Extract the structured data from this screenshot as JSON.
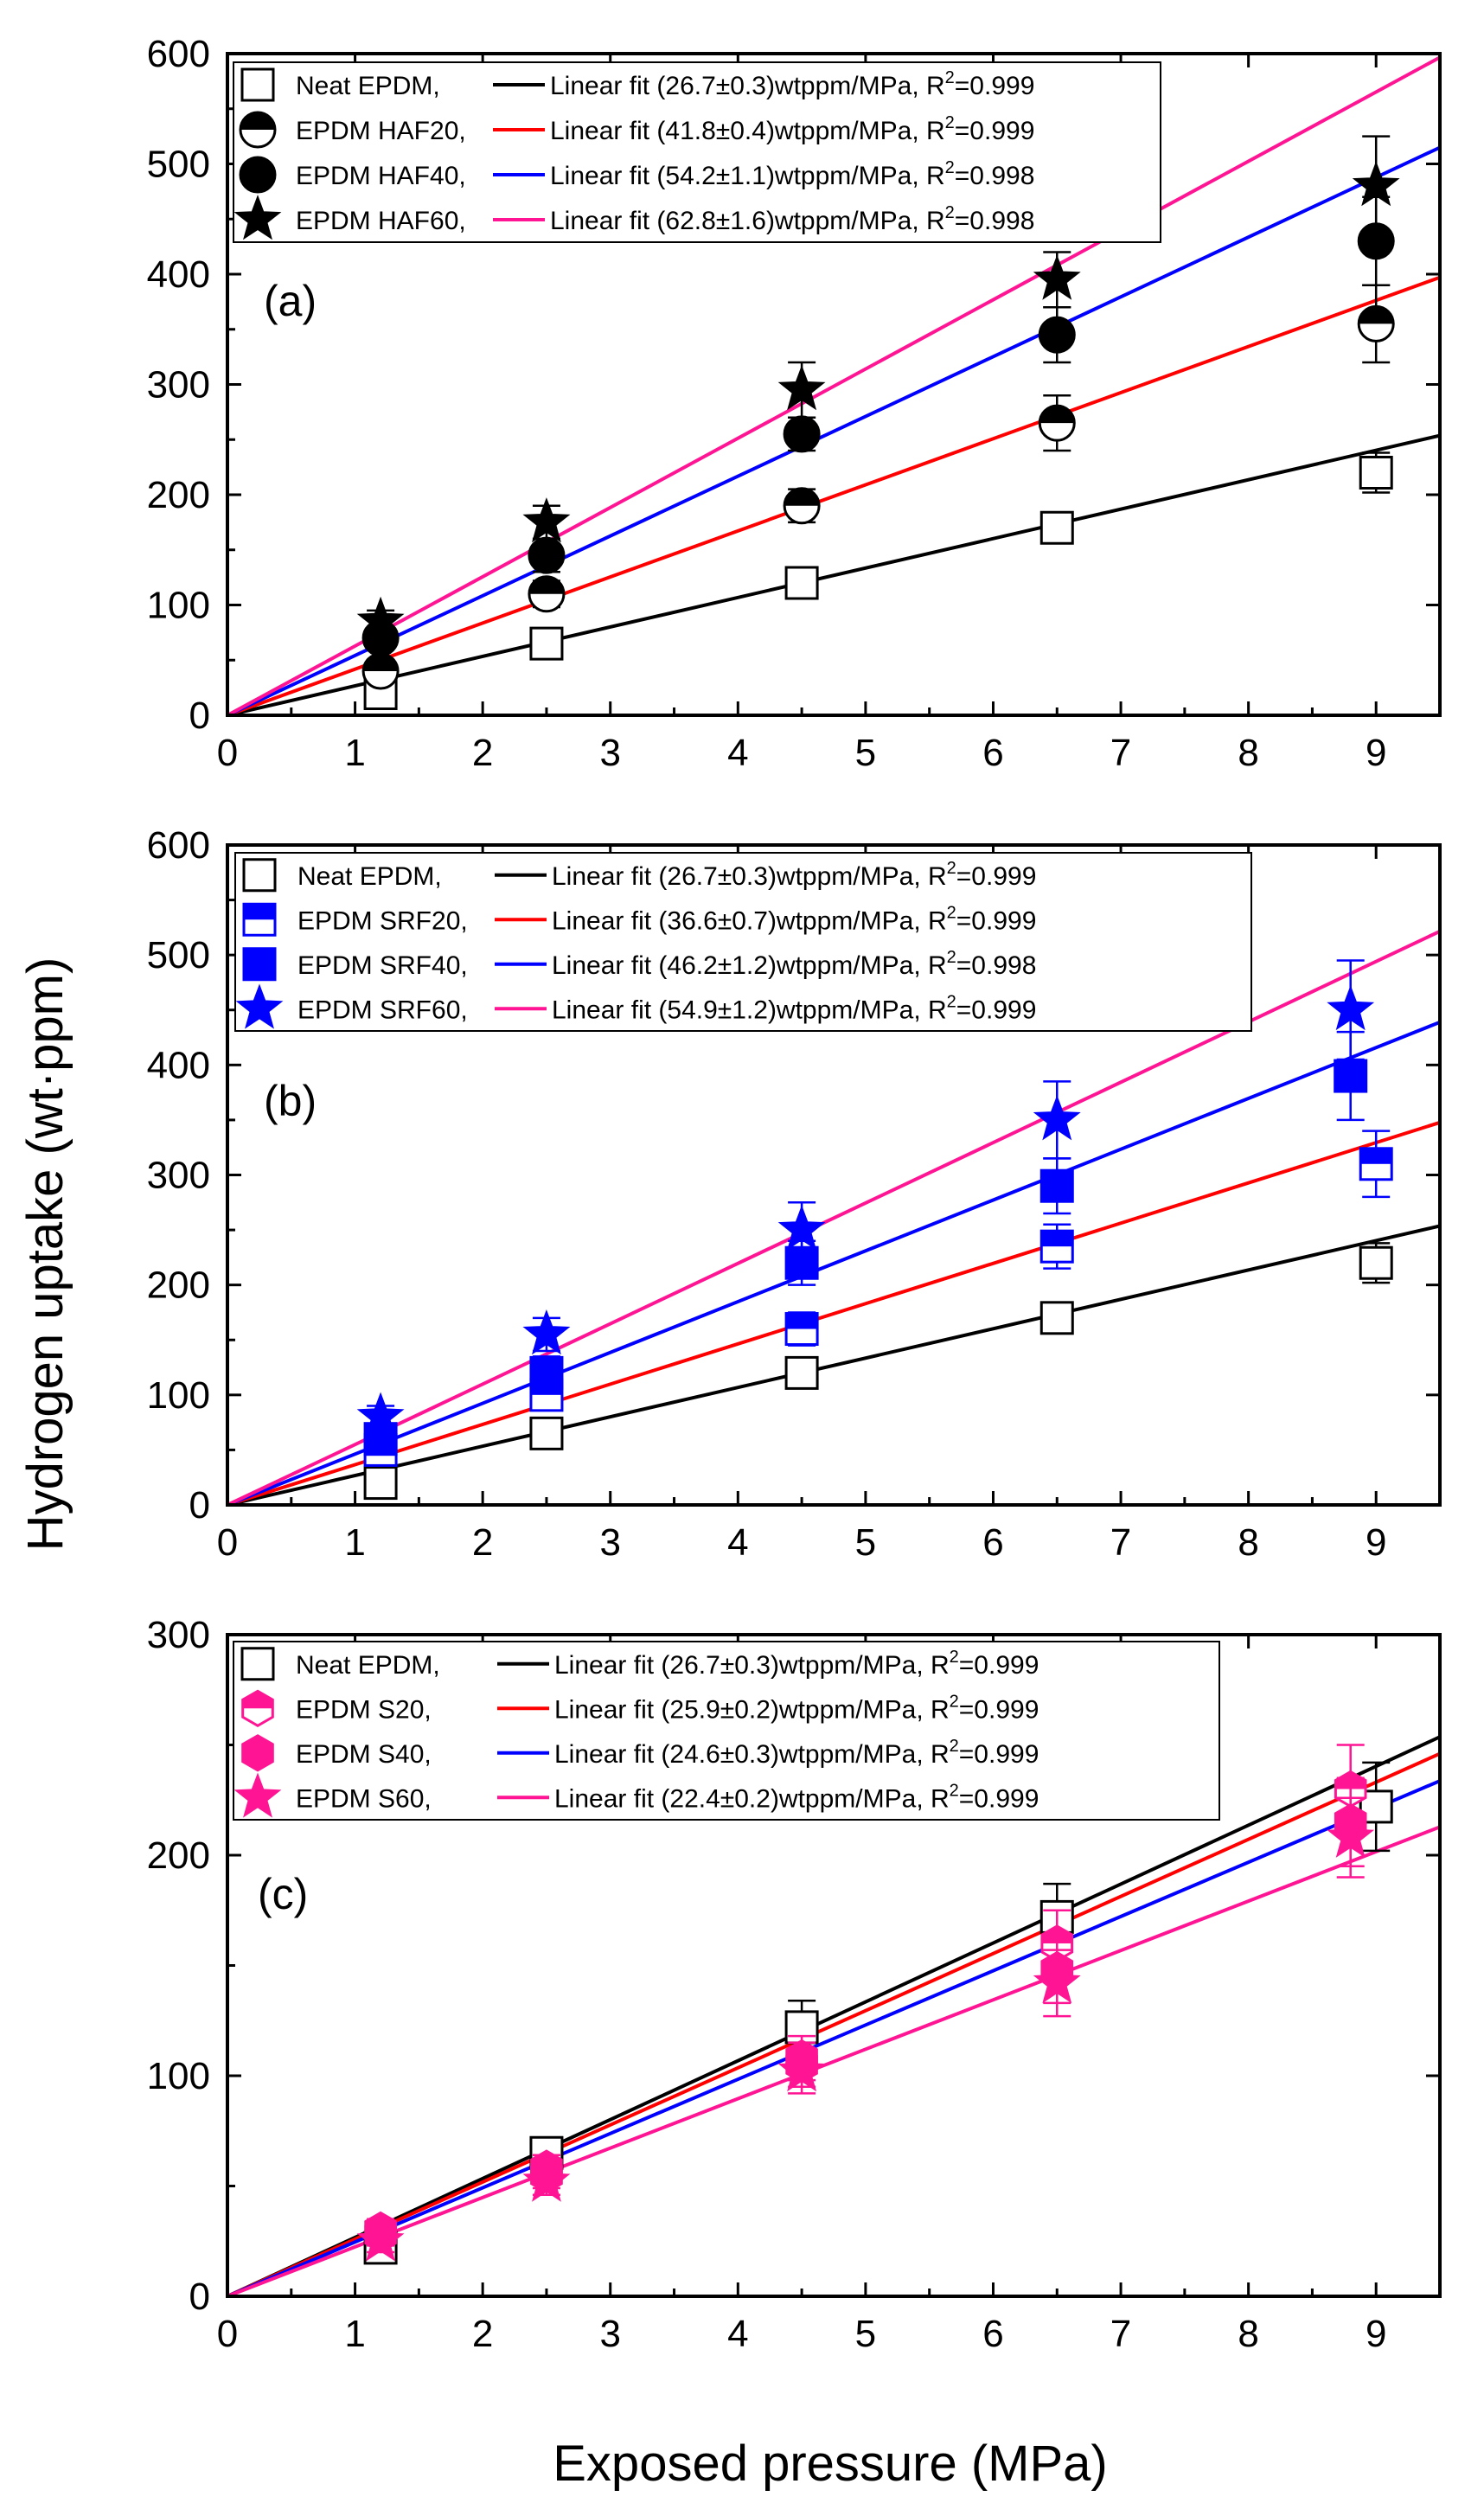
{
  "chart_data": [
    {
      "type": "scatter",
      "panel_label": "(a)",
      "xlim": [
        0,
        9.5
      ],
      "ylim": [
        0,
        600
      ],
      "xticks": [
        "0",
        "1",
        "2",
        "3",
        "4",
        "5",
        "6",
        "7",
        "8",
        "9"
      ],
      "yticks": [
        "0",
        "100",
        "200",
        "300",
        "400",
        "500",
        "600"
      ],
      "series": [
        {
          "name": "Neat EPDM,",
          "fit_label": "Linear fit (26.7±0.3)wtppm/MPa, R",
          "r2_label": "2",
          "r2_value": "=0.999",
          "slope": 26.7,
          "marker": "open-square",
          "color": "#000000",
          "fit_color": "#000000",
          "x": [
            1.2,
            2.5,
            4.5,
            6.5,
            9.0
          ],
          "y": [
            20,
            65,
            120,
            170,
            220
          ],
          "err": [
            10,
            10,
            10,
            10,
            18
          ]
        },
        {
          "name": "EPDM HAF20,",
          "fit_label": "Linear fit (41.8±0.4)wtppm/MPa, R",
          "r2_label": "2",
          "r2_value": "=0.999",
          "slope": 41.8,
          "marker": "half-circle",
          "color": "#000000",
          "fit_color": "#ff0000",
          "x": [
            1.2,
            2.5,
            4.5,
            6.5,
            9.0
          ],
          "y": [
            40,
            110,
            190,
            265,
            355
          ],
          "err": [
            10,
            12,
            15,
            25,
            35
          ]
        },
        {
          "name": "EPDM HAF40,",
          "fit_label": "Linear fit (54.2±1.1)wtppm/MPa, R",
          "r2_label": "2",
          "r2_value": "=0.998",
          "slope": 54.2,
          "marker": "filled-circle",
          "color": "#000000",
          "fit_color": "#0000ff",
          "x": [
            1.2,
            2.5,
            4.5,
            6.5,
            9.0
          ],
          "y": [
            70,
            145,
            255,
            345,
            430
          ],
          "err": [
            10,
            15,
            15,
            25,
            40
          ]
        },
        {
          "name": "EPDM HAF60,",
          "fit_label": "Linear fit (62.8±1.6)wtppm/MPa, R",
          "r2_label": "2",
          "r2_value": "=0.998",
          "slope": 62.8,
          "marker": "star",
          "color": "#000000",
          "fit_color": "#ff1493",
          "x": [
            1.2,
            2.5,
            4.5,
            6.5,
            9.0
          ],
          "y": [
            85,
            175,
            295,
            395,
            480
          ],
          "err": [
            10,
            15,
            25,
            25,
            45
          ]
        }
      ]
    },
    {
      "type": "scatter",
      "panel_label": "(b)",
      "xlim": [
        0,
        9.5
      ],
      "ylim": [
        0,
        600
      ],
      "xticks": [
        "0",
        "1",
        "2",
        "3",
        "4",
        "5",
        "6",
        "7",
        "8",
        "9"
      ],
      "yticks": [
        "0",
        "100",
        "200",
        "300",
        "400",
        "500",
        "600"
      ],
      "series": [
        {
          "name": "Neat EPDM,",
          "fit_label": "Linear fit (26.7±0.3)wtppm/MPa, R",
          "r2_label": "2",
          "r2_value": "=0.999",
          "slope": 26.7,
          "marker": "open-square",
          "color": "#000000",
          "fit_color": "#000000",
          "x": [
            1.2,
            2.5,
            4.5,
            6.5,
            9.0
          ],
          "y": [
            20,
            65,
            120,
            170,
            220
          ],
          "err": [
            10,
            10,
            10,
            10,
            18
          ]
        },
        {
          "name": "EPDM SRF20,",
          "fit_label": "Linear fit (36.6±0.7)wtppm/MPa, R",
          "r2_label": "2",
          "r2_value": "=0.999",
          "slope": 36.6,
          "marker": "half-square",
          "color": "#0000ff",
          "fit_color": "#ff0000",
          "x": [
            1.2,
            2.5,
            4.5,
            6.5,
            9.0
          ],
          "y": [
            50,
            100,
            160,
            235,
            310
          ],
          "err": [
            10,
            12,
            15,
            20,
            30
          ]
        },
        {
          "name": "EPDM SRF40,",
          "fit_label": "Linear fit (46.2±1.2)wtppm/MPa, R",
          "r2_label": "2",
          "r2_value": "=0.998",
          "slope": 46.2,
          "marker": "filled-square",
          "color": "#0000ff",
          "fit_color": "#0000ff",
          "x": [
            1.2,
            2.5,
            4.5,
            6.5,
            8.8
          ],
          "y": [
            60,
            120,
            220,
            290,
            390
          ],
          "err": [
            10,
            15,
            20,
            25,
            40
          ]
        },
        {
          "name": "EPDM SRF60,",
          "fit_label": "Linear fit (54.9±1.2)wtppm/MPa, R",
          "r2_label": "2",
          "r2_value": "=0.999",
          "slope": 54.9,
          "marker": "star",
          "color": "#0000ff",
          "fit_color": "#ff1493",
          "x": [
            1.2,
            2.5,
            4.5,
            6.5,
            8.8
          ],
          "y": [
            80,
            155,
            250,
            350,
            450
          ],
          "err": [
            10,
            15,
            25,
            35,
            45
          ]
        }
      ]
    },
    {
      "type": "scatter",
      "panel_label": "(c)",
      "xlim": [
        0,
        9.5
      ],
      "ylim": [
        0,
        300
      ],
      "xticks": [
        "0",
        "1",
        "2",
        "3",
        "4",
        "5",
        "6",
        "7",
        "8",
        "9"
      ],
      "yticks": [
        "0",
        "100",
        "200",
        "300"
      ],
      "series": [
        {
          "name": "Neat EPDM,",
          "fit_label": "Linear fit (26.7±0.3)wtppm/MPa, R",
          "r2_label": "2",
          "r2_value": "=0.999",
          "slope": 26.7,
          "marker": "open-square",
          "color": "#000000",
          "fit_color": "#000000",
          "x": [
            1.2,
            2.5,
            4.5,
            6.5,
            9.0
          ],
          "y": [
            22,
            65,
            122,
            172,
            222
          ],
          "err": [
            6,
            6,
            12,
            15,
            20
          ]
        },
        {
          "name": "EPDM S20,",
          "fit_label": "Linear fit (25.9±0.2)wtppm/MPa, R",
          "r2_label": "2",
          "r2_value": "=0.999",
          "slope": 25.9,
          "marker": "half-hexagon",
          "color": "#ff1493",
          "fit_color": "#ff0000",
          "x": [
            1.2,
            2.5,
            4.5,
            6.5,
            8.8
          ],
          "y": [
            30,
            58,
            108,
            160,
            230
          ],
          "err": [
            5,
            6,
            10,
            15,
            20
          ]
        },
        {
          "name": "EPDM S40,",
          "fit_label": "Linear fit (24.6±0.3)wtppm/MPa, R",
          "r2_label": "2",
          "r2_value": "=0.999",
          "slope": 24.6,
          "marker": "filled-hexagon",
          "color": "#ff1493",
          "fit_color": "#0000ff",
          "x": [
            1.2,
            2.5,
            4.5,
            6.5,
            8.8
          ],
          "y": [
            28,
            55,
            105,
            148,
            215
          ],
          "err": [
            5,
            6,
            10,
            15,
            20
          ]
        },
        {
          "name": "EPDM S60,",
          "fit_label": "Linear fit (22.4±0.2)wtppm/MPa, R",
          "r2_label": "2",
          "r2_value": "=0.999",
          "slope": 22.4,
          "marker": "star",
          "color": "#ff1493",
          "fit_color": "#ff1493",
          "x": [
            1.2,
            2.5,
            4.5,
            6.5,
            8.8
          ],
          "y": [
            25,
            52,
            102,
            142,
            208
          ],
          "err": [
            5,
            6,
            10,
            15,
            18
          ]
        }
      ]
    }
  ],
  "ylabel": "Hydrogen uptake (wt·ppm)",
  "xlabel": "Exposed pressure (MPa)"
}
